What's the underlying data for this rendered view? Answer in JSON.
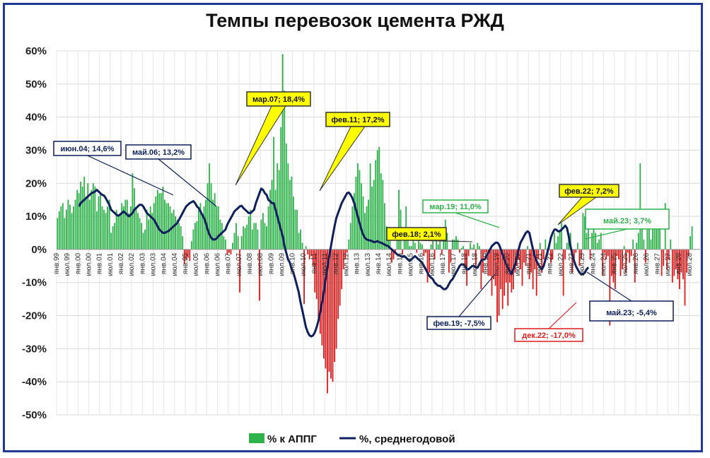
{
  "chart_data": {
    "type": "bar",
    "title": "Темпы перевозок цемента РЖД",
    "ylim": [
      -50,
      60
    ],
    "y_ticks": [
      "60%",
      "50%",
      "40%",
      "30%",
      "20%",
      "10%",
      "0%",
      "-10%",
      "-20%",
      "-30%",
      "-40%",
      "-50%"
    ],
    "y_tick_values": [
      60,
      50,
      40,
      30,
      20,
      10,
      0,
      -10,
      -20,
      -30,
      -40,
      -50
    ],
    "x_ticks": [
      "янв.99",
      "июл.99",
      "янв.00",
      "июл.00",
      "янв.01",
      "июл.01",
      "янв.02",
      "июл.02",
      "янв.03",
      "июл.03",
      "янв.04",
      "июл.04",
      "янв.05",
      "июл.05",
      "янв.06",
      "июл.06",
      "янв.07",
      "июл.07",
      "янв.08",
      "июл.08",
      "янв.09",
      "июл.09",
      "янв.10",
      "июл.10",
      "янв.11",
      "июл.11",
      "янв.12",
      "июл.12",
      "янв.13",
      "июл.13",
      "янв.14",
      "июл.14",
      "янв.15",
      "июл.15",
      "янв.16",
      "июл.16",
      "янв.17",
      "июл.17",
      "янв.18",
      "июл.18",
      "янв.19",
      "июл.19",
      "янв.20",
      "июл.20",
      "янв.21",
      "июл.21",
      "янв.22",
      "июл.22",
      "янв.23",
      "июл.23",
      "янв.24",
      "июл.24",
      "янв.25",
      "июл.25",
      "янв.26",
      "июл.26",
      "янв.27",
      "июл.27",
      "янв.28",
      "июл.28"
    ],
    "grid": true,
    "legend_position": "bottom",
    "series": [
      {
        "name": "% к АППГ",
        "kind": "bar",
        "color_positive": "#2db34a",
        "color_negative": "#e11b1b",
        "values": [
          9.5,
          11.5,
          13,
          14,
          9.5,
          12,
          15,
          13.5,
          11,
          13,
          15,
          18,
          17,
          20.5,
          19,
          22,
          16,
          20,
          15,
          18,
          20,
          19,
          11.5,
          16,
          17,
          13,
          12,
          11,
          13,
          15,
          5,
          7,
          8,
          12,
          10,
          11,
          14,
          13,
          15,
          15,
          11,
          13,
          23,
          18.5,
          12.5,
          11,
          9.5,
          8,
          5,
          6,
          12,
          9,
          13,
          11,
          14,
          16,
          18,
          17,
          17,
          19,
          15,
          14,
          14,
          13,
          11,
          12,
          10,
          9,
          8,
          7,
          4,
          -4.5,
          -3,
          -2.5,
          -3.5,
          2.5,
          6,
          8,
          8.5,
          12,
          14,
          10,
          13,
          15,
          20,
          26,
          20,
          15,
          17,
          13,
          13,
          9,
          8,
          4,
          3,
          -1.5,
          -1,
          -1.5,
          2,
          5,
          8,
          4,
          -13,
          4,
          7,
          6.5,
          7.5,
          10,
          12,
          6,
          8,
          8,
          6,
          -15.5,
          9,
          11,
          8,
          7,
          13,
          18,
          21,
          34,
          18,
          26,
          24,
          37,
          59,
          48,
          32,
          26,
          21,
          22,
          16,
          12,
          12,
          5,
          6,
          2,
          -16.5,
          1,
          -1.5,
          -3,
          -2,
          -5,
          -13,
          -15,
          -20.5,
          -25.5,
          -29,
          -33,
          -36,
          -43.5,
          -37,
          -39,
          -40,
          -34,
          -30,
          -21,
          -17,
          -12,
          -6,
          -3,
          -1,
          3,
          8,
          13,
          17,
          22,
          26,
          24,
          20,
          16,
          11,
          13,
          15,
          26,
          19,
          21,
          27,
          30,
          31,
          23,
          21,
          14,
          7,
          3,
          3,
          -4,
          -3,
          -1,
          5,
          18,
          12,
          -1.5,
          3,
          13,
          4,
          1,
          1,
          6,
          2,
          -1,
          3.5,
          2,
          1.5,
          -2,
          -1,
          -10,
          -7,
          1.5,
          3,
          -3,
          5,
          1.5,
          3,
          -1.5,
          2.5,
          9,
          5,
          -7,
          -4,
          3,
          3,
          4,
          3,
          -1,
          0.5,
          1,
          -5,
          -11,
          -2,
          2,
          0.5,
          1.5,
          -5,
          2,
          1,
          -12,
          -7,
          -1,
          -1,
          -8,
          -8,
          -14,
          -9,
          -11,
          -22,
          -20,
          -12,
          -18,
          -14,
          -10,
          -17,
          -10,
          -13,
          -12,
          -7,
          -5,
          -3,
          -6,
          -11,
          -4,
          -5,
          1,
          -9,
          -7,
          -12,
          -6,
          -14,
          -3,
          2,
          -7,
          -3,
          3,
          -2,
          1,
          -4,
          -3,
          5,
          2,
          4,
          6,
          8,
          -14,
          -3,
          2,
          3,
          5,
          -7,
          -4,
          -1,
          2,
          -5,
          -3,
          11,
          10,
          5,
          8,
          -3,
          5,
          7,
          5,
          2,
          3,
          5,
          -8,
          -1,
          -3,
          -2,
          -23,
          -8,
          -10,
          -12,
          -2,
          -3,
          -8,
          -6,
          1,
          -7,
          -1,
          -4,
          -2,
          3,
          -10,
          2,
          5,
          26,
          12,
          3,
          -4,
          11,
          11,
          3,
          7,
          10,
          6,
          7,
          9,
          -8,
          -5,
          14,
          -6,
          -3,
          3,
          -10,
          -8,
          -6,
          -9,
          -12,
          -7,
          -9,
          -17,
          -7,
          -2,
          4,
          7
        ]
      },
      {
        "name": "%, среднегодовой",
        "kind": "line",
        "color": "#0d1f5c",
        "values": [
          13,
          14,
          14.5,
          15,
          15.5,
          16,
          16.5,
          17,
          17.2,
          17.5,
          18,
          17.5,
          17,
          16.5,
          16.3,
          15.5,
          14.5,
          13.5,
          12,
          11.5,
          11,
          10.5,
          10.2,
          10.5,
          11,
          11.5,
          11,
          10.5,
          10,
          10.5,
          11,
          12,
          12.5,
          13,
          13.5,
          13.5,
          13,
          12,
          11,
          10.5,
          10,
          9.5,
          9,
          8,
          7,
          6,
          5.5,
          5,
          5,
          5.3,
          5.5,
          6,
          6.5,
          7,
          7.5,
          8,
          9,
          10,
          11,
          12,
          13,
          13.5,
          14,
          14.3,
          14.6,
          14,
          13,
          12.5,
          11.5,
          10.5,
          9.5,
          8,
          6,
          4.5,
          3.5,
          3,
          3,
          3.3,
          4,
          4.5,
          5,
          5.5,
          6,
          7.5,
          8.5,
          9.5,
          10.5,
          11.5,
          12,
          12.5,
          13,
          13.2,
          12.5,
          12,
          11.5,
          11,
          11,
          11.5,
          12,
          14,
          15.5,
          17,
          18.4,
          18,
          17,
          16.5,
          15,
          14.5,
          14,
          14,
          12,
          10,
          8,
          6,
          4,
          1,
          -1,
          -3,
          -4,
          -6,
          -7,
          -9,
          -11,
          -13,
          -16,
          -18.5,
          -21,
          -23.5,
          -25,
          -26,
          -26.3,
          -26,
          -25,
          -23.5,
          -21.5,
          -19,
          -16,
          -13,
          -9,
          -5.5,
          -2,
          1,
          4,
          7,
          9.5,
          11,
          12.5,
          14,
          15,
          16,
          17,
          17.2,
          16.5,
          15.5,
          14,
          12,
          10,
          8,
          6,
          4.5,
          3.5,
          3,
          2.8,
          2.7,
          2.5,
          2.2,
          2.3,
          2.5,
          2.2,
          2,
          1.8,
          1.5,
          1.2,
          1,
          0.5,
          0,
          -0.5,
          -1,
          -1.5,
          -1.7,
          -2,
          -2.2,
          -2,
          -2.5,
          -3,
          -3.5,
          -3,
          -2.5,
          -2,
          -2.5,
          -3,
          -3.5,
          -4,
          -5,
          -6,
          -7,
          -8,
          -8.5,
          -9,
          -10,
          -10.5,
          -11,
          -11,
          -11.5,
          -12,
          -12,
          -11.5,
          -10.5,
          -9.5,
          -9,
          -8,
          -7,
          -6,
          -5,
          -4.5,
          -4.5,
          -5,
          -6,
          -6,
          -5.5,
          -5,
          -5,
          -5.5,
          -5.5,
          -4.5,
          -3.5,
          -3,
          -3,
          -2,
          -1,
          0,
          1,
          1.5,
          2,
          2.1,
          1.5,
          0,
          -1.5,
          -3,
          -4.5,
          -5.5,
          -6.5,
          -7.5,
          -6,
          -4.5,
          -2.5,
          0,
          2,
          3,
          4,
          5,
          5.5,
          5,
          2.5,
          0,
          -2,
          -3.5,
          -4.5,
          -5.5,
          -6,
          -5,
          -3,
          -1,
          1,
          3.5,
          5,
          6,
          6,
          5.5,
          5.5,
          6,
          6.5,
          7.2,
          6.5,
          4,
          1,
          -1.5,
          -3.5,
          -5,
          -6,
          -7,
          -7.5,
          -7.5,
          -7,
          -6,
          -5.4
        ]
      }
    ],
    "annotations": [
      {
        "text": "июн.04; 14,6%",
        "style": "navy"
      },
      {
        "text": "май.06; 13,2%",
        "style": "navy"
      },
      {
        "text": "мар.07; 18,4%",
        "style": "yellow"
      },
      {
        "text": "фев.11; 17,2%",
        "style": "yellow"
      },
      {
        "text": "мар.19; 11,0%",
        "style": "green"
      },
      {
        "text": "фев.18; 2,1%",
        "style": "yellow"
      },
      {
        "text": "фев.22; 7,2%",
        "style": "yellow"
      },
      {
        "text": "май.23; 3,7%",
        "style": "green-large"
      },
      {
        "text": "фев.19; -7,5%",
        "style": "navy"
      },
      {
        "text": "дек.22; -17,0%",
        "style": "red"
      },
      {
        "text": "май.23; -5,4%",
        "style": "navy-large"
      }
    ]
  }
}
